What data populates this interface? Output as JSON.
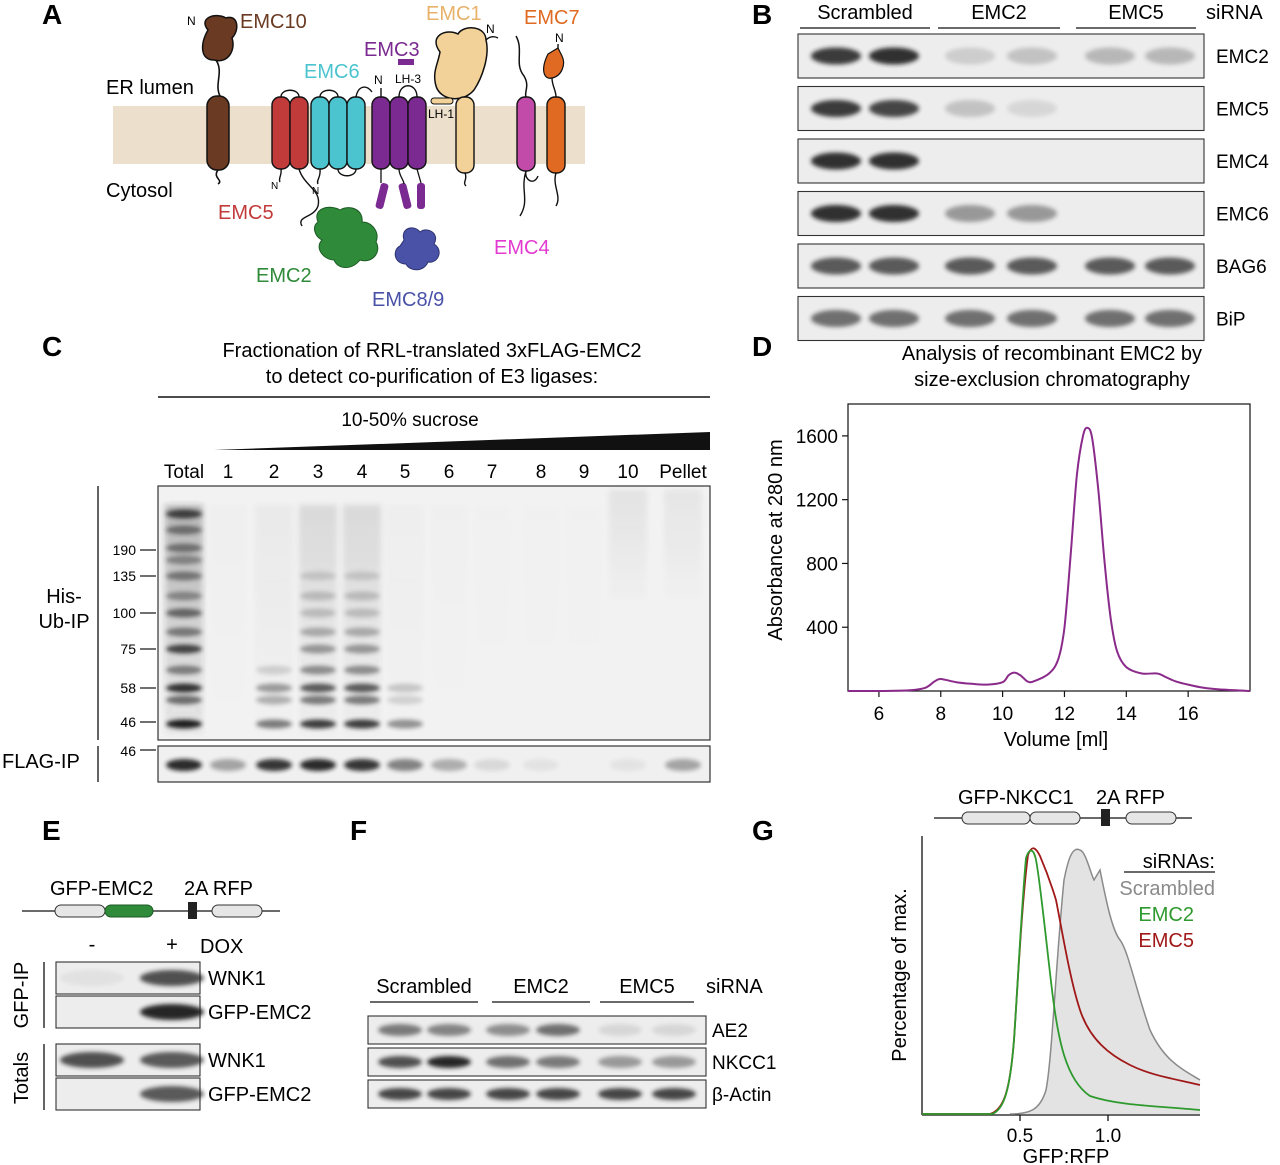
{
  "colors": {
    "emc10": "#6b3a22",
    "emc6": "#4bc4cf",
    "emc1": "#f3d29a",
    "emc7": "#e06a22",
    "emc3": "#7a2a90",
    "emc5": "#c23b3b",
    "emc2": "#2f8a3a",
    "emc89": "#4a52a8",
    "emc4": "#c24aa8",
    "membrane": "#ecdfcb",
    "scrambled_fill": "#e3e3e3",
    "scrambled_line": "#8a8a8a",
    "emc2_line": "#2e9a2e",
    "emc5_line": "#a01818",
    "sec_line": "#8a2a8a"
  },
  "panel_a": {
    "label": "A",
    "er_lumen": "ER lumen",
    "cytosol": "Cytosol",
    "subunits": {
      "emc10": "EMC10",
      "emc6": "EMC6",
      "emc3": "EMC3",
      "emc1": "EMC1",
      "emc7": "EMC7",
      "emc5": "EMC5",
      "emc2": "EMC2",
      "emc89": "EMC8/9",
      "emc4": "EMC4"
    },
    "lh3": "LH-3",
    "lh1": "LH-1",
    "n_term": "N"
  },
  "panel_b": {
    "label": "B",
    "groups": [
      "Scrambled",
      "EMC2",
      "EMC5"
    ],
    "condition_label": "siRNA",
    "rows": [
      {
        "name": "EMC2",
        "intensities": [
          0.85,
          0.9,
          0.15,
          0.2,
          0.25,
          0.25
        ]
      },
      {
        "name": "EMC5",
        "intensities": [
          0.85,
          0.8,
          0.2,
          0.1,
          0,
          0
        ]
      },
      {
        "name": "EMC4",
        "intensities": [
          0.9,
          0.9,
          0,
          0,
          0,
          0
        ]
      },
      {
        "name": "EMC6",
        "intensities": [
          0.9,
          0.9,
          0.4,
          0.4,
          0,
          0
        ]
      },
      {
        "name": "BAG6",
        "intensities": [
          0.7,
          0.7,
          0.7,
          0.7,
          0.7,
          0.7
        ]
      },
      {
        "name": "BiP",
        "intensities": [
          0.6,
          0.6,
          0.6,
          0.6,
          0.6,
          0.6
        ]
      }
    ]
  },
  "panel_c": {
    "label": "C",
    "title_line1": "Fractionation of RRL-translated 3xFLAG-EMC2",
    "title_line2": "to detect co-purification of E3 ligases:",
    "gradient_label": "10-50% sucrose",
    "lanes": [
      "Total",
      "1",
      "2",
      "3",
      "4",
      "5",
      "6",
      "7",
      "8",
      "9",
      "10",
      "Pellet"
    ],
    "his_label_line1": "His-",
    "his_label_line2": "Ub-IP",
    "flag_label": "FLAG-IP",
    "markers": [
      "190",
      "135",
      "100",
      "75",
      "58",
      "46"
    ],
    "flag_marker": "46",
    "flag_intensities": [
      0.9,
      0.35,
      0.85,
      0.9,
      0.85,
      0.5,
      0.3,
      0.1,
      0.06,
      0,
      0.06,
      0.35
    ]
  },
  "panel_d": {
    "label": "D",
    "title_line1": "Analysis of recombinant EMC2 by",
    "title_line2": "size-exclusion chromatography"
  },
  "chart_data": {
    "type": "line",
    "title": "Analysis of recombinant EMC2 by size-exclusion chromatography",
    "xlabel": "Volume [ml]",
    "ylabel": "Absorbance at 280 nm",
    "xlim": [
      5,
      18
    ],
    "ylim": [
      0,
      1800
    ],
    "xticks": [
      6,
      8,
      10,
      12,
      14,
      16
    ],
    "yticks": [
      400,
      800,
      1200,
      1600
    ],
    "x": [
      5,
      6,
      7,
      7.5,
      7.8,
      8.0,
      8.5,
      9.0,
      9.5,
      10.0,
      10.2,
      10.4,
      10.6,
      10.8,
      11.0,
      11.5,
      11.8,
      12.0,
      12.2,
      12.4,
      12.6,
      12.75,
      12.9,
      13.1,
      13.3,
      13.5,
      13.7,
      14.0,
      14.5,
      15.0,
      15.3,
      15.6,
      16.0,
      16.5,
      17.0,
      18.0
    ],
    "y": [
      0,
      0,
      5,
      20,
      60,
      75,
      55,
      45,
      40,
      55,
      100,
      115,
      95,
      60,
      60,
      110,
      200,
      400,
      850,
      1350,
      1600,
      1650,
      1580,
      1250,
      800,
      450,
      250,
      150,
      110,
      110,
      85,
      60,
      40,
      20,
      10,
      0
    ]
  },
  "panel_e": {
    "label": "E",
    "construct_gfp": "GFP-EMC2",
    "construct_2a": "2A RFP",
    "minus": "-",
    "plus": "+",
    "dox": "DOX",
    "gfp_ip": "GFP-IP",
    "totals": "Totals",
    "rows": [
      {
        "name": "WNK1",
        "intensities": [
          0.05,
          0.75
        ]
      },
      {
        "name": "GFP-EMC2",
        "intensities": [
          0,
          0.95
        ]
      },
      {
        "name": "WNK1",
        "intensities": [
          0.75,
          0.7
        ]
      },
      {
        "name": "GFP-EMC2",
        "intensities": [
          0,
          0.7
        ]
      }
    ]
  },
  "panel_f": {
    "label": "F",
    "groups": [
      "Scrambled",
      "EMC2",
      "EMC5"
    ],
    "condition_label": "siRNA",
    "rows": [
      {
        "name": "AE2",
        "intensities": [
          0.55,
          0.5,
          0.45,
          0.6,
          0.1,
          0.1
        ]
      },
      {
        "name": "NKCC1",
        "intensities": [
          0.75,
          0.95,
          0.6,
          0.55,
          0.4,
          0.4
        ]
      },
      {
        "name": "β-Actin",
        "intensities": [
          0.8,
          0.8,
          0.8,
          0.8,
          0.8,
          0.8
        ]
      }
    ]
  },
  "panel_g": {
    "label": "G",
    "construct_gfp": "GFP-NKCC1",
    "construct_2a": "2A RFP",
    "ylabel": "Percentage of max.",
    "xlabel": "GFP:RFP",
    "xticks": [
      "0.5",
      "1.0"
    ],
    "legend_title": "siRNAs:",
    "legend": [
      "Scrambled",
      "EMC2",
      "EMC5"
    ]
  }
}
